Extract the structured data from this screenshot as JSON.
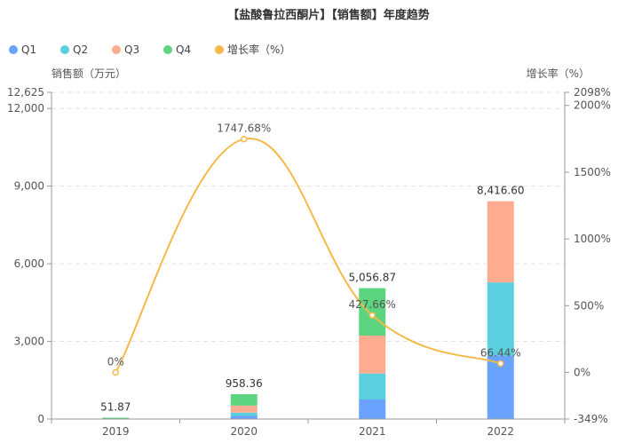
{
  "chart_data": {
    "type": "bar",
    "title": "【盐酸鲁拉西酮片】【销售额】年度趋势",
    "categories": [
      "2019",
      "2020",
      "2021",
      "2022"
    ],
    "series": [
      {
        "name": "Q1",
        "kind": "bar",
        "color": "#6aa2ff",
        "values": [
          0,
          120,
          755,
          2450
        ]
      },
      {
        "name": "Q2",
        "kind": "bar",
        "color": "#5acfde",
        "values": [
          0,
          130,
          1005,
          2830
        ]
      },
      {
        "name": "Q3",
        "kind": "bar",
        "color": "#ffab8f",
        "values": [
          0,
          270,
          1465,
          3136.6
        ]
      },
      {
        "name": "Q4",
        "kind": "bar",
        "color": "#5dd47f",
        "values": [
          51.87,
          438.36,
          1831.87,
          0
        ]
      },
      {
        "name": "增长率（%）",
        "kind": "line",
        "color": "#f5b94a",
        "axis": "right",
        "values": [
          0,
          1747.68,
          427.66,
          66.44
        ]
      }
    ],
    "bar_totals": [
      "51.87",
      "958.36",
      "5,056.87",
      "8,416.60"
    ],
    "line_labels": [
      "0%",
      "1747.68%",
      "427.66%",
      "66.44%"
    ],
    "ylabel_left": "销售额（万元）",
    "ylabel_right": "增长率（%）",
    "ylim_left": [
      0,
      12625
    ],
    "ylim_right": [
      -349,
      2098
    ],
    "left_ticks": [
      "0",
      "3,000",
      "6,000",
      "9,000",
      "12,000",
      "12,625"
    ],
    "left_tick_values": [
      0,
      3000,
      6000,
      9000,
      12000,
      12625
    ],
    "right_ticks": [
      "-349%",
      "0%",
      "500%",
      "1000%",
      "1500%",
      "2000%",
      "2098%"
    ],
    "right_tick_values": [
      -349,
      0,
      500,
      1000,
      1500,
      2000,
      2098
    ],
    "legend_position": "top-left",
    "grid": true
  }
}
